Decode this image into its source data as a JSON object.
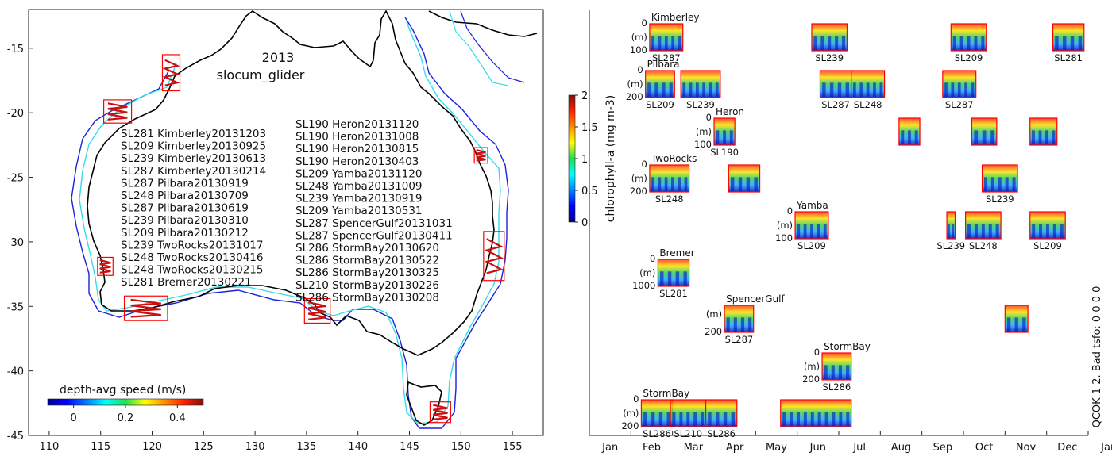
{
  "colors": {
    "coast": "#000000",
    "shelf_cyan": "#33dde8",
    "shelf_blue": "#1a22dd",
    "box_red": "#ff0000",
    "track_red": "#cc1010"
  },
  "chart_data": [
    {
      "type": "map",
      "title_year": "2013",
      "title_platform": "slocum_glider",
      "xlim": [
        108,
        158
      ],
      "ylim": [
        -45,
        -12
      ],
      "xticks": [
        110,
        115,
        120,
        125,
        130,
        135,
        140,
        145,
        150,
        155
      ],
      "yticks": [
        -15,
        -20,
        -25,
        -30,
        -35,
        -40,
        -45
      ],
      "deployment_boxes": [
        {
          "site": "Kimberley",
          "lon": [
            121,
            122.7
          ],
          "lat": [
            -18.3,
            -15.5
          ]
        },
        {
          "site": "Kimberley",
          "lon": [
            115.3,
            118
          ],
          "lat": [
            -20.8,
            -19
          ]
        },
        {
          "site": "Heron",
          "lon": [
            151.3,
            152.6
          ],
          "lat": [
            -23.9,
            -22.7
          ]
        },
        {
          "site": "Yamba",
          "lon": [
            152.2,
            154.2
          ],
          "lat": [
            -33,
            -29.2
          ]
        },
        {
          "site": "TwoRocks",
          "lon": [
            114.7,
            116.2
          ],
          "lat": [
            -32.6,
            -31.2
          ]
        },
        {
          "site": "Bremer",
          "lon": [
            117.3,
            121.5
          ],
          "lat": [
            -36.1,
            -34.2
          ]
        },
        {
          "site": "SpencerGulf",
          "lon": [
            134.8,
            137.3
          ],
          "lat": [
            -36.3,
            -34.4
          ]
        },
        {
          "site": "StormBay",
          "lon": [
            147,
            149
          ],
          "lat": [
            -44,
            -42.4
          ]
        }
      ],
      "deployment_list_left": [
        "SL281 Kimberley20131203",
        "SL209 Kimberley20130925",
        "SL239 Kimberley20130613",
        "SL287 Kimberley20130214",
        "SL287 Pilbara20130919",
        "SL248 Pilbara20130709",
        "SL287 Pilbara20130619",
        "SL239 Pilbara20130310",
        "SL209 Pilbara20130212",
        "SL239 TwoRocks20131017",
        "SL248 TwoRocks20130416",
        "SL248 TwoRocks20130215",
        "SL281 Bremer20130221"
      ],
      "deployment_list_right": [
        "SL190 Heron20131120",
        "SL190 Heron20131008",
        "SL190 Heron20130815",
        "SL190 Heron20130403",
        "SL209 Yamba20131120",
        "SL248 Yamba20131009",
        "SL239 Yamba20130919",
        "SL209 Yamba20130531",
        "SL287 SpencerGulf20131031",
        "SL287 SpencerGulf20130411",
        "SL286 StormBay20130620",
        "SL286 StormBay20130522",
        "SL286 StormBay20130325",
        "SL210 StormBay20130226",
        "SL286 StormBay20130208"
      ],
      "speed_colorbar": {
        "label": "depth-avg speed (m/s)",
        "range": [
          -0.1,
          0.5
        ],
        "ticks": [
          0,
          0.2,
          0.4
        ]
      }
    },
    {
      "type": "timeline",
      "months": [
        "Jan",
        "Feb",
        "Mar",
        "Apr",
        "May",
        "Jun",
        "Jul",
        "Aug",
        "Sep",
        "Oct",
        "Nov",
        "Dec",
        "Jan"
      ],
      "xlim": [
        0,
        12
      ],
      "colorbar": {
        "label": "chlorophyll-a (mg m-3)",
        "range": [
          0,
          2
        ],
        "ticks": [
          0,
          0.5,
          1,
          1.5,
          2
        ]
      },
      "side_note": "QCOK 1  2. Bad tsfo: 0  0  0  0",
      "rows": [
        {
          "site": "Kimberley",
          "depth_max": 100,
          "tick_labels": [
            "0",
            "(m)",
            "100"
          ],
          "deployments": [
            {
              "glider": "SL287",
              "start": 1.45,
              "end": 2.25
            },
            {
              "glider": "SL239",
              "start": 5.35,
              "end": 6.2
            },
            {
              "glider": "SL209",
              "start": 8.7,
              "end": 9.55
            },
            {
              "glider": "SL281",
              "start": 11.15,
              "end": 11.9
            }
          ]
        },
        {
          "site": "Pilbara",
          "depth_max": 200,
          "tick_labels": [
            "0",
            "(m)",
            "200"
          ],
          "deployments": [
            {
              "glider": "SL209",
              "start": 1.35,
              "end": 2.05
            },
            {
              "glider": "SL239",
              "start": 2.2,
              "end": 3.15
            },
            {
              "glider": "SL287",
              "start": 5.55,
              "end": 6.3
            },
            {
              "glider": "SL248",
              "start": 6.3,
              "end": 7.1
            },
            {
              "glider": "SL287",
              "start": 8.5,
              "end": 9.3
            }
          ]
        },
        {
          "site": "Heron",
          "depth_max": 100,
          "tick_labels": [
            "0",
            "(m)",
            "100"
          ],
          "deployments": [
            {
              "glider": "SL190",
              "start": 3.0,
              "end": 3.5
            },
            {
              "glider": "",
              "start": 7.45,
              "end": 7.95
            },
            {
              "glider": "",
              "start": 9.2,
              "end": 9.8
            },
            {
              "glider": "",
              "start": 10.6,
              "end": 11.25
            }
          ]
        },
        {
          "site": "TwoRocks",
          "depth_max": 200,
          "tick_labels": [
            "0",
            "(m)",
            "200"
          ],
          "deployments": [
            {
              "glider": "SL248",
              "start": 1.45,
              "end": 2.4
            },
            {
              "glider": "",
              "start": 3.35,
              "end": 4.1
            },
            {
              "glider": "SL239",
              "start": 9.45,
              "end": 10.3
            }
          ]
        },
        {
          "site": "Yamba",
          "depth_max": 100,
          "tick_labels": [
            "0",
            "(m)",
            "100"
          ],
          "deployments": [
            {
              "glider": "SL209",
              "start": 4.95,
              "end": 5.75
            },
            {
              "glider": "SL239",
              "start": 8.6,
              "end": 8.8
            },
            {
              "glider": "SL248",
              "start": 9.05,
              "end": 9.9
            },
            {
              "glider": "SL209",
              "start": 10.6,
              "end": 11.45
            }
          ]
        },
        {
          "site": "Bremer",
          "depth_max": 1000,
          "tick_labels": [
            "0",
            "(m)",
            "1000"
          ],
          "deployments": [
            {
              "glider": "SL281",
              "start": 1.65,
              "end": 2.4
            }
          ]
        },
        {
          "site": "SpencerGulf",
          "depth_max": 200,
          "tick_labels": [
            "(m)",
            "200"
          ],
          "deployments": [
            {
              "glider": "SL287",
              "start": 3.25,
              "end": 3.95
            },
            {
              "glider": "",
              "start": 10.0,
              "end": 10.55
            }
          ]
        },
        {
          "site": "StormBay",
          "depth_max": 200,
          "tick_labels": [
            "0",
            "(m)",
            "200"
          ],
          "deployments": [
            {
              "glider": "SL286",
              "start": 5.6,
              "end": 6.3
            }
          ]
        },
        {
          "site": "StormBay",
          "depth_max": 200,
          "tick_labels": [
            "0",
            "(m)",
            "200"
          ],
          "deployments": [
            {
              "glider": "SL286",
              "start": 1.25,
              "end": 2.0
            },
            {
              "glider": "SL210",
              "start": 1.95,
              "end": 2.8
            },
            {
              "glider": "SL286",
              "start": 2.8,
              "end": 3.55
            },
            {
              "glider": "",
              "start": 4.6,
              "end": 6.3
            }
          ]
        }
      ]
    }
  ]
}
